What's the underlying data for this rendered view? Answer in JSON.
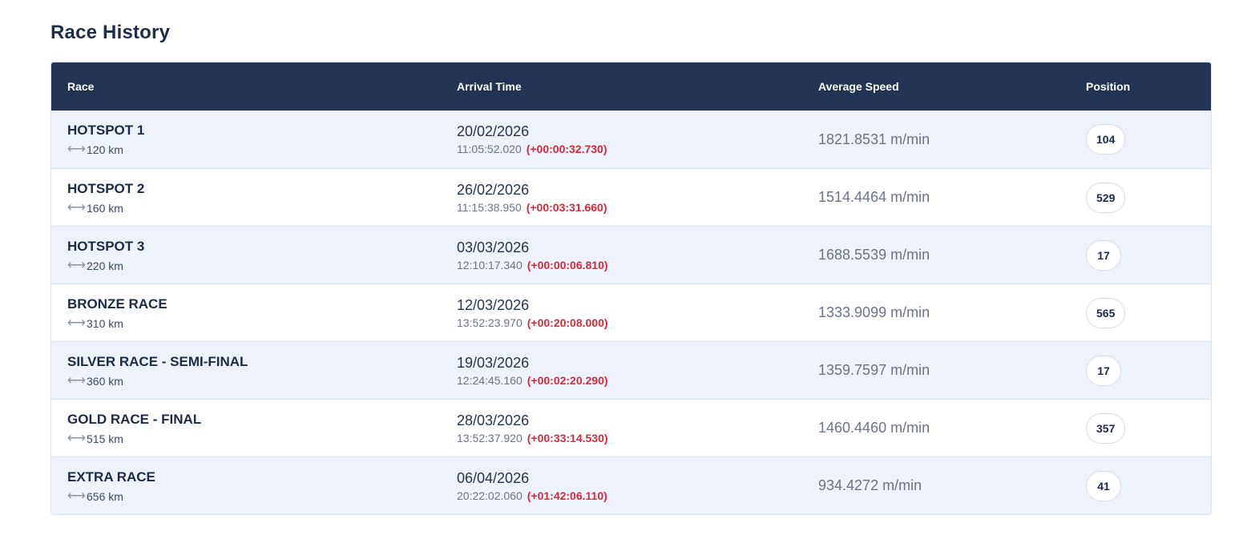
{
  "page": {
    "title": "Race History"
  },
  "table": {
    "headers": {
      "race": "Race",
      "arrival": "Arrival Time",
      "speed": "Average Speed",
      "position": "Position"
    },
    "rows": [
      {
        "name": "HOTSPOT 1",
        "distance": "120 km",
        "date": "20/02/2026",
        "time": "11:05:52.020",
        "delta": "(+00:00:32.730)",
        "speed": "1821.8531 m/min",
        "position": "104"
      },
      {
        "name": "HOTSPOT 2",
        "distance": "160 km",
        "date": "26/02/2026",
        "time": "11:15:38.950",
        "delta": "(+00:03:31.660)",
        "speed": "1514.4464 m/min",
        "position": "529"
      },
      {
        "name": "HOTSPOT 3",
        "distance": "220 km",
        "date": "03/03/2026",
        "time": "12:10:17.340",
        "delta": "(+00:00:06.810)",
        "speed": "1688.5539 m/min",
        "position": "17"
      },
      {
        "name": "BRONZE RACE",
        "distance": "310 km",
        "date": "12/03/2026",
        "time": "13:52:23.970",
        "delta": "(+00:20:08.000)",
        "speed": "1333.9099 m/min",
        "position": "565"
      },
      {
        "name": "SILVER RACE - SEMI-FINAL",
        "distance": "360 km",
        "date": "19/03/2026",
        "time": "12:24:45.160",
        "delta": "(+00:02:20.290)",
        "speed": "1359.7597 m/min",
        "position": "17"
      },
      {
        "name": "GOLD RACE - FINAL",
        "distance": "515 km",
        "date": "28/03/2026",
        "time": "13:52:37.920",
        "delta": "(+00:33:14.530)",
        "speed": "1460.4460 m/min",
        "position": "357"
      },
      {
        "name": "EXTRA RACE",
        "distance": "656 km",
        "date": "06/04/2026",
        "time": "20:22:02.060",
        "delta": "(+01:42:06.110)",
        "speed": "934.4272 m/min",
        "position": "41"
      }
    ]
  },
  "icons": {
    "distance": "arrows-horizontal-icon"
  },
  "colors": {
    "header_bg": "#223454",
    "row_shade": "#eef3fb",
    "delta": "#d42b3a"
  }
}
